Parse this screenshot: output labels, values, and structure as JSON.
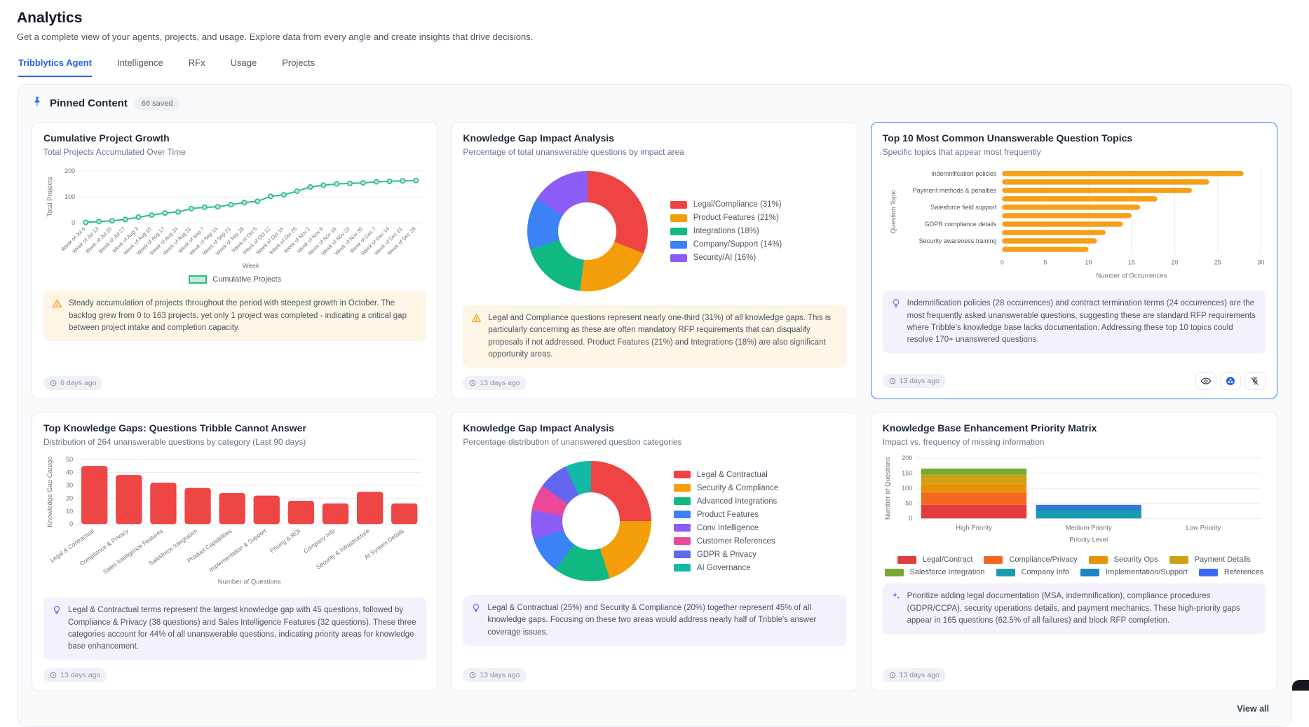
{
  "page": {
    "title": "Analytics",
    "subtitle": "Get a complete view of your agents, projects, and usage. Explore data from every angle and create insights that drive decisions.",
    "tabs": [
      {
        "label": "Tribblytics Agent",
        "active": true
      },
      {
        "label": "Intelligence",
        "active": false
      },
      {
        "label": "RFx",
        "active": false
      },
      {
        "label": "Usage",
        "active": false
      },
      {
        "label": "Projects",
        "active": false
      }
    ]
  },
  "pinned": {
    "title": "Pinned Content",
    "badge": "66 saved",
    "view_all": "View all"
  },
  "cards": [
    {
      "title": "Cumulative Project Growth",
      "subtitle": "Total Projects Accumulated Over Time",
      "timestamp": "6 days ago",
      "insight": {
        "type": "warning",
        "text": "Steady accumulation of projects throughout the period with steepest growth in October. The backlog grew from 0 to 163 projects, yet only 1 project was completed - indicating a critical gap between project intake and completion capacity."
      },
      "chart_data": {
        "type": "line",
        "x": [
          "Week of Jul 6",
          "Week of Jul 13",
          "Week of Jul 20",
          "Week of Jul 27",
          "Week of Aug 3",
          "Week of Aug 10",
          "Week of Aug 17",
          "Week of Aug 24",
          "Week of Aug 31",
          "Week of Sep 7",
          "Week of Sep 14",
          "Week of Sep 21",
          "Week of Sep 28",
          "Week of Oct 5",
          "Week of Oct 12",
          "Week of Oct 19",
          "Week of Oct 26",
          "Week of Nov 2",
          "Week of Nov 9",
          "Week of Nov 16",
          "Week of Nov 23",
          "Week of Nov 30",
          "Week of Dec 7",
          "Week of Dec 14",
          "Week of Dec 21",
          "Week of Dec 28"
        ],
        "series": [
          {
            "name": "Cumulative Projects",
            "color": "#2dbd85",
            "values": [
              2,
              5,
              8,
              13,
              22,
              30,
              38,
              42,
              55,
              60,
              62,
              70,
              78,
              83,
              102,
              108,
              122,
              138,
              145,
              150,
              152,
              154,
              158,
              160,
              162,
              163
            ]
          }
        ],
        "xlabel": "Week",
        "ylabel": "Total Projects",
        "yticks": [
          0,
          100,
          200
        ],
        "ylim": [
          0,
          200
        ],
        "legend": "Cumulative Projects"
      }
    },
    {
      "title": "Knowledge Gap Impact Analysis",
      "subtitle": "Percentage of total unanswerable questions by impact area",
      "timestamp": "13 days ago",
      "insight": {
        "type": "warning",
        "text": "Legal and Compliance questions represent nearly one-third (31%) of all knowledge gaps. This is particularly concerning as these are often mandatory RFP requirements that can disqualify proposals if not addressed. Product Features (21%) and Integrations (18%) are also significant opportunity areas."
      },
      "chart_data": {
        "type": "donut",
        "segments": [
          {
            "label": "Legal/Compliance (31%)",
            "value": 31,
            "color": "#ef4444"
          },
          {
            "label": "Product Features (21%)",
            "value": 21,
            "color": "#f59e0b"
          },
          {
            "label": "Integrations (18%)",
            "value": 18,
            "color": "#10b981"
          },
          {
            "label": "Company/Support (14%)",
            "value": 14,
            "color": "#3b82f6"
          },
          {
            "label": "Security/AI (16%)",
            "value": 16,
            "color": "#8b5cf6"
          }
        ]
      }
    },
    {
      "title": "Top 10 Most Common Unanswerable Question Topics",
      "subtitle": "Specific topics that appear most frequently",
      "timestamp": "13 days ago",
      "insight": {
        "type": "bulb",
        "text": "Indemnification policies (28 occurrences) and contract termination terms (24 occurrences) are the most frequently asked unanswerable questions, suggesting these are standard RFP requirements where Tribble's knowledge base lacks documentation. Addressing these top 10 topics could resolve 170+ unanswered questions."
      },
      "chart_data": {
        "type": "hbar",
        "color": "#f5a018",
        "labels": [
          "Indemnification policies",
          "",
          "Payment methods & penalties",
          "",
          "Salesforce field support",
          "",
          "GDPR compliance details",
          "",
          "Security awareness training",
          ""
        ],
        "values": [
          28,
          24,
          22,
          18,
          16,
          15,
          14,
          12,
          11,
          10
        ],
        "xlabel": "Number of Occurrences",
        "ylabel": "Question Topic",
        "xticks": [
          0,
          5,
          10,
          15,
          20,
          25,
          30
        ],
        "xlim": [
          0,
          30
        ]
      }
    },
    {
      "title": "Top Knowledge Gaps: Questions Tribble Cannot Answer",
      "subtitle": "Distribution of 264 unanswerable questions by category (Last 90 days)",
      "timestamp": "13 days ago",
      "insight": {
        "type": "bulb",
        "text": "Legal & Contractual terms represent the largest knowledge gap with 45 questions, followed by Compliance & Privacy (38 questions) and Sales Intelligence Features (32 questions). These three categories account for 44% of all unanswerable questions, indicating priority areas for knowledge base enhancement."
      },
      "chart_data": {
        "type": "bar",
        "color": "#ee4545",
        "categories": [
          "Legal & Contractual",
          "Compliance & Privacy",
          "Sales Intelligence Features",
          "Salesforce Integration",
          "Product Capabilities",
          "Implementation & Support",
          "Pricing & ROI",
          "Company Info",
          "Security & Infrastructure",
          "AI System Details"
        ],
        "values": [
          45,
          38,
          32,
          28,
          24,
          22,
          18,
          16,
          25,
          16
        ],
        "xlabel": "Number of Questions",
        "ylabel": "Knowledge Gap Catego",
        "yticks": [
          0,
          10,
          20,
          30,
          40,
          50
        ],
        "ylim": [
          0,
          50
        ]
      }
    },
    {
      "title": "Knowledge Gap Impact Analysis",
      "subtitle": "Percentage distribution of unanswered question categories",
      "timestamp": "13 days ago",
      "insight": {
        "type": "bulb",
        "text": "Legal & Contractual (25%) and Security & Compliance (20%) together represent 45% of all knowledge gaps. Focusing on these two areas would address nearly half of Tribble's answer coverage issues."
      },
      "chart_data": {
        "type": "donut",
        "segments": [
          {
            "label": "Legal & Contractual",
            "value": 25,
            "color": "#ef4444"
          },
          {
            "label": "Security & Compliance",
            "value": 20,
            "color": "#f59e0b"
          },
          {
            "label": "Advanced Integrations",
            "value": 15,
            "color": "#10b981"
          },
          {
            "label": "Product Features",
            "value": 10,
            "color": "#3b82f6"
          },
          {
            "label": "Conv Intelligence",
            "value": 8,
            "color": "#8b5cf6"
          },
          {
            "label": "Customer References",
            "value": 7,
            "color": "#ec4899"
          },
          {
            "label": "GDPR & Privacy",
            "value": 8,
            "color": "#6366f1"
          },
          {
            "label": "AI Governance",
            "value": 7,
            "color": "#14b8a6"
          }
        ]
      }
    },
    {
      "title": "Knowledge Base Enhancement Priority Matrix",
      "subtitle": "Impact vs. frequency of missing information",
      "timestamp": "13 days ago",
      "insight": {
        "type": "sparkle",
        "text": "Prioritize adding legal documentation (MSA, indemnification), compliance procedures (GDPR/CCPA), security operations details, and payment mechanics. These high-priority gaps appear in 165 questions (62.5% of all failures) and block RFP completion."
      },
      "chart_data": {
        "type": "stacked_bar",
        "categories": [
          "High Priority",
          "Medium Priority",
          "Low Priority"
        ],
        "xlabel": "Priority Level",
        "ylabel": "Number of Questions",
        "yticks": [
          0,
          50,
          100,
          150,
          200
        ],
        "ylim": [
          0,
          200
        ],
        "series": [
          {
            "name": "Legal/Contract",
            "color": "#e23c3c",
            "values": [
              45,
              0,
              0
            ]
          },
          {
            "name": "Compliance/Privacy",
            "color": "#f2681f",
            "values": [
              40,
              0,
              0
            ]
          },
          {
            "name": "Security Ops",
            "color": "#e8920c",
            "values": [
              30,
              0,
              0
            ]
          },
          {
            "name": "Payment Details",
            "color": "#cda112",
            "values": [
              30,
              0,
              0
            ]
          },
          {
            "name": "Salesforce Integration",
            "color": "#76a832",
            "values": [
              20,
              0,
              0
            ]
          },
          {
            "name": "Company Info",
            "color": "#1a9cb0",
            "values": [
              0,
              25,
              0
            ]
          },
          {
            "name": "Implementation/Support",
            "color": "#1b85c8",
            "values": [
              0,
              13,
              0
            ]
          },
          {
            "name": "References",
            "color": "#3b68f0",
            "values": [
              0,
              7,
              0
            ]
          }
        ]
      }
    }
  ]
}
